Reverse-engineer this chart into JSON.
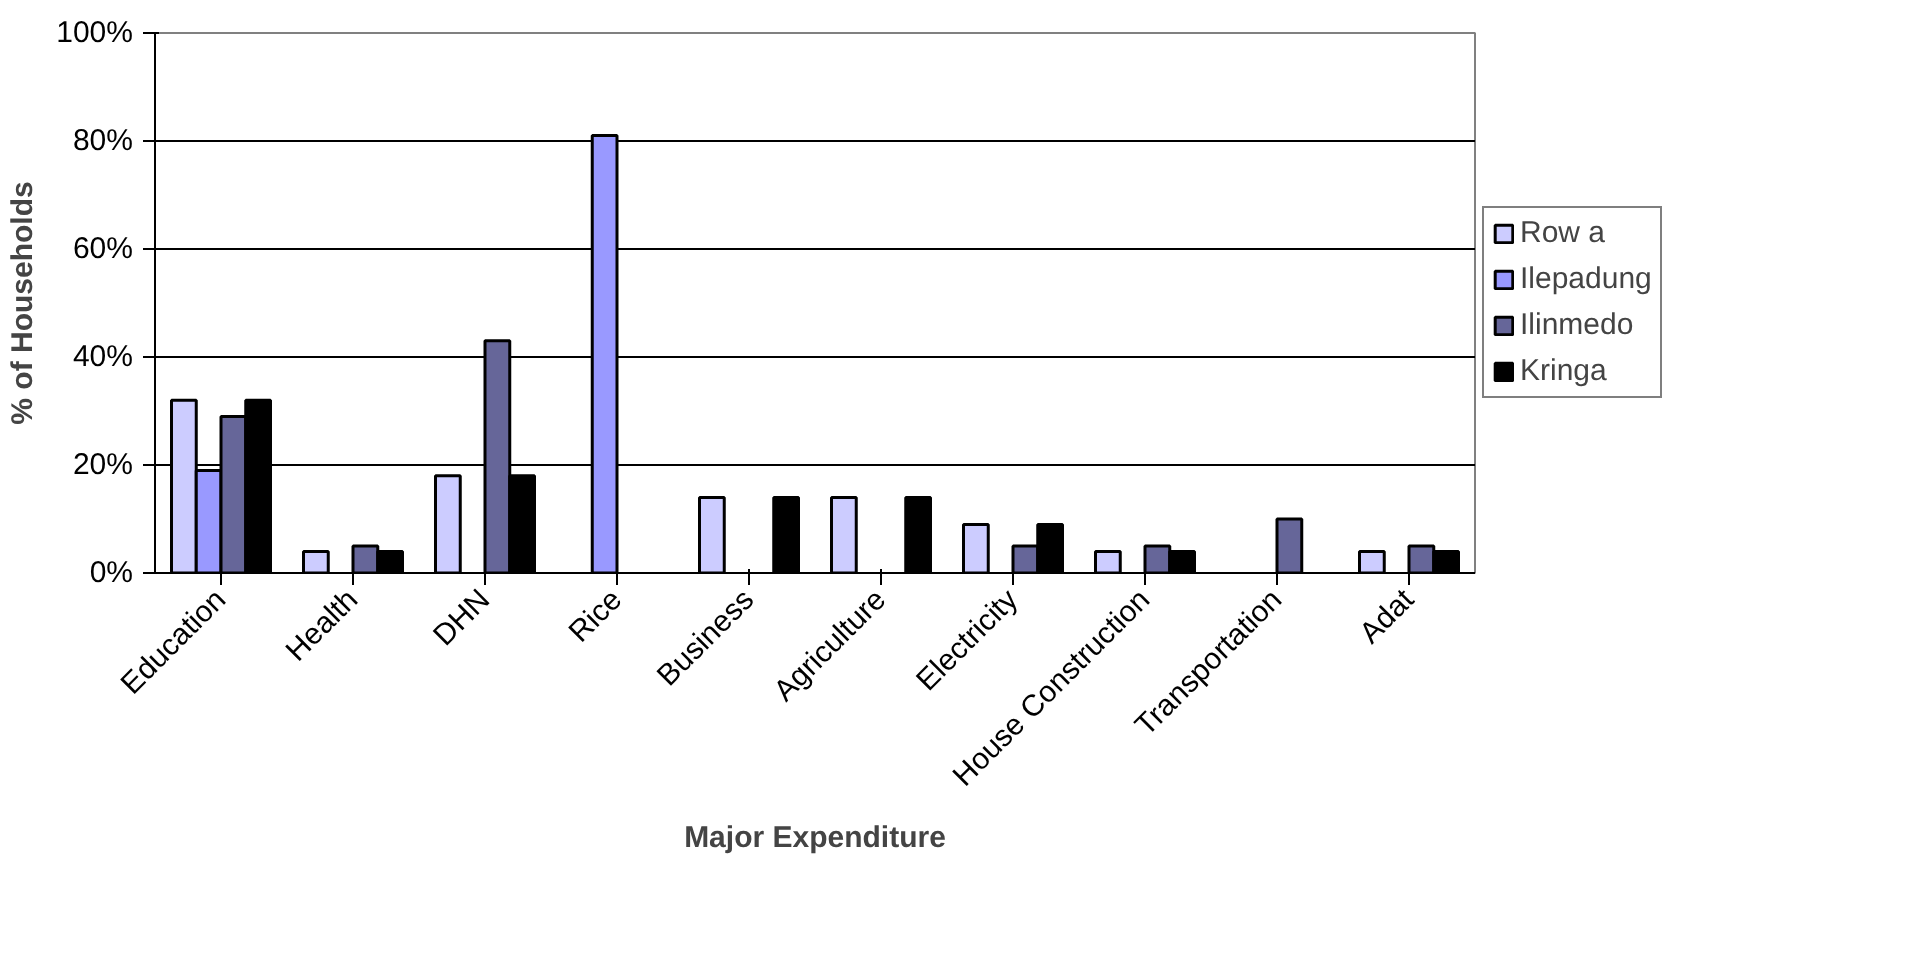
{
  "chart_data": {
    "type": "bar",
    "xlabel": "Major Expenditure",
    "ylabel": "% of Households",
    "categories": [
      "Education",
      "Health",
      "DHN",
      "Rice",
      "Business",
      "Agriculture",
      "Electricity",
      "House Construction",
      "Transportation",
      "Adat"
    ],
    "series": [
      {
        "name": "Row a",
        "color": "#ccccff",
        "values": [
          32,
          4,
          18,
          null,
          14,
          14,
          9,
          4,
          null,
          4
        ]
      },
      {
        "name": "Ilepadung",
        "color": "#9999ff",
        "values": [
          19,
          null,
          null,
          81,
          null,
          null,
          null,
          null,
          null,
          null
        ]
      },
      {
        "name": "Ilinmedo",
        "color": "#666699",
        "values": [
          29,
          5,
          43,
          null,
          null,
          null,
          5,
          5,
          10,
          5
        ]
      },
      {
        "name": "Kringa",
        "color": "#000000",
        "values": [
          32,
          4,
          18,
          null,
          14,
          14,
          9,
          4,
          null,
          4
        ]
      }
    ],
    "ylim": [
      0,
      100
    ],
    "yticks": [
      {
        "value": 0,
        "label": "0%"
      },
      {
        "value": 20,
        "label": "20%"
      },
      {
        "value": 40,
        "label": "40%"
      },
      {
        "value": 60,
        "label": "60%"
      },
      {
        "value": 80,
        "label": "80%"
      },
      {
        "value": 100,
        "label": "100%"
      }
    ],
    "grid": "y",
    "legend": "right"
  }
}
